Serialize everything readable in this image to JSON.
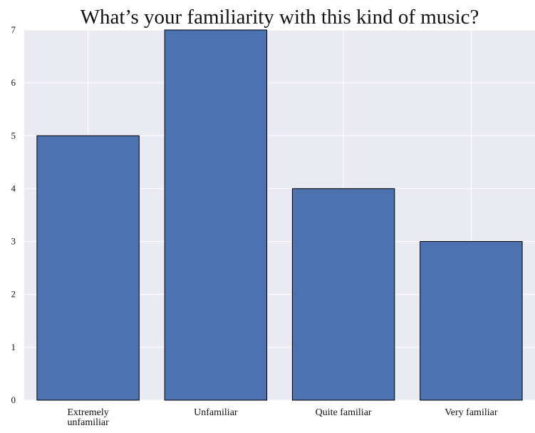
{
  "chart_data": {
    "type": "bar",
    "title": "What’s your familiarity with this kind of music?",
    "xlabel": "",
    "ylabel": "",
    "categories": [
      "Extremely unfamiliar",
      "Unfamiliar",
      "Quite familiar",
      "Very familiar"
    ],
    "values": [
      5,
      7,
      4,
      3
    ],
    "ylim": [
      0,
      7
    ],
    "yticks": [
      "0",
      "1",
      "2",
      "3",
      "4",
      "5",
      "6",
      "7"
    ],
    "grid": true,
    "bar_color": "#4c72b0",
    "background_color": "#eaeaf2"
  }
}
